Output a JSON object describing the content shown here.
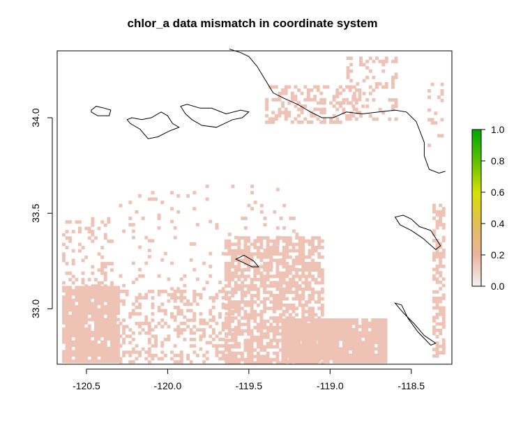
{
  "chart_data": {
    "type": "heatmap",
    "title": "chlor_a data mismatch in coordinate system",
    "xlabel": "",
    "ylabel": "",
    "xlim": [
      -120.68,
      -118.25
    ],
    "ylim": [
      32.71,
      34.35
    ],
    "x_ticks": [
      -120.5,
      -120.0,
      -119.5,
      -119.0,
      -118.5
    ],
    "x_tick_labels": [
      "-120.5",
      "-120.0",
      "-119.5",
      "-119.0",
      "-118.5"
    ],
    "y_ticks": [
      33.0,
      33.5,
      34.0
    ],
    "y_tick_labels": [
      "33.0",
      "33.5",
      "34.0"
    ],
    "legend": {
      "placement": "right",
      "range": [
        0.0,
        1.0
      ],
      "ticks": [
        0.0,
        0.2,
        0.4,
        0.6,
        0.8,
        1.0
      ],
      "tick_labels": [
        "0.0",
        "0.2",
        "0.4",
        "0.6",
        "0.8",
        "1.0"
      ],
      "colors": [
        "#f2f2f2",
        "#ebb49c",
        "#e3be57",
        "#d6e000",
        "#5ec000",
        "#00a600"
      ]
    },
    "cell_color": "#eec3b5",
    "cell_value_typical": 0.1,
    "coastline_color": "#000000",
    "regions": [
      {
        "name": "southwest-block",
        "lon": [
          -120.65,
          -120.3
        ],
        "lat": [
          32.72,
          33.12
        ],
        "density": 0.92
      },
      {
        "name": "southwest-edge",
        "lon": [
          -120.65,
          -120.35
        ],
        "lat": [
          33.12,
          33.48
        ],
        "density": 0.25
      },
      {
        "name": "south-central",
        "lon": [
          -120.3,
          -119.6
        ],
        "lat": [
          32.72,
          33.1
        ],
        "density": 0.35
      },
      {
        "name": "central-plume",
        "lon": [
          -119.65,
          -119.05
        ],
        "lat": [
          32.72,
          33.38
        ],
        "density": 0.7
      },
      {
        "name": "southeast-block",
        "lon": [
          -119.3,
          -118.65
        ],
        "lat": [
          32.72,
          32.95
        ],
        "density": 0.95
      },
      {
        "name": "scattered-middle",
        "lon": [
          -120.3,
          -119.2
        ],
        "lat": [
          33.1,
          33.65
        ],
        "density": 0.06
      },
      {
        "name": "north-coast",
        "lon": [
          -119.4,
          -118.8
        ],
        "lat": [
          33.98,
          34.17
        ],
        "density": 0.35
      },
      {
        "name": "north-east",
        "lon": [
          -118.9,
          -118.6
        ],
        "lat": [
          34.0,
          34.32
        ],
        "density": 0.25
      },
      {
        "name": "east-strip",
        "lon": [
          -118.37,
          -118.3
        ],
        "lat": [
          32.75,
          33.55
        ],
        "density": 0.55
      },
      {
        "name": "east-upper",
        "lon": [
          -118.4,
          -118.32
        ],
        "lat": [
          33.85,
          34.2
        ],
        "density": 0.15
      }
    ],
    "coastline": [
      [
        -119.62,
        34.36
      ],
      [
        -119.55,
        34.34
      ],
      [
        -119.5,
        34.32
      ],
      [
        -119.45,
        34.27
      ],
      [
        -119.4,
        34.2
      ],
      [
        -119.35,
        34.13
      ],
      [
        -119.28,
        34.1
      ],
      [
        -119.2,
        34.07
      ],
      [
        -119.12,
        34.03
      ],
      [
        -119.05,
        34.0
      ],
      [
        -118.98,
        34.0
      ],
      [
        -118.9,
        34.03
      ],
      [
        -118.8,
        34.02
      ],
      [
        -118.7,
        34.03
      ],
      [
        -118.6,
        34.04
      ],
      [
        -118.53,
        34.03
      ],
      [
        -118.47,
        33.98
      ],
      [
        -118.42,
        33.87
      ],
      [
        -118.42,
        33.8
      ],
      [
        -118.39,
        33.73
      ],
      [
        -118.33,
        33.71
      ],
      [
        -118.29,
        33.72
      ]
    ],
    "islands": [
      [
        [
          -120.47,
          34.04
        ],
        [
          -120.44,
          34.06
        ],
        [
          -120.39,
          34.05
        ],
        [
          -120.35,
          34.04
        ],
        [
          -120.36,
          34.01
        ],
        [
          -120.43,
          34.01
        ],
        [
          -120.47,
          34.03
        ],
        [
          -120.47,
          34.04
        ]
      ],
      [
        [
          -120.25,
          33.99
        ],
        [
          -120.22,
          34.0
        ],
        [
          -120.16,
          33.99
        ],
        [
          -120.1,
          34.0
        ],
        [
          -120.04,
          34.03
        ],
        [
          -120.0,
          34.01
        ],
        [
          -119.97,
          33.97
        ],
        [
          -119.93,
          33.95
        ],
        [
          -119.99,
          33.93
        ],
        [
          -120.06,
          33.9
        ],
        [
          -120.12,
          33.89
        ],
        [
          -120.17,
          33.94
        ],
        [
          -120.23,
          33.97
        ],
        [
          -120.25,
          33.99
        ]
      ],
      [
        [
          -119.92,
          34.06
        ],
        [
          -119.88,
          34.07
        ],
        [
          -119.8,
          34.05
        ],
        [
          -119.73,
          34.05
        ],
        [
          -119.64,
          34.02
        ],
        [
          -119.55,
          34.04
        ],
        [
          -119.5,
          34.03
        ],
        [
          -119.54,
          34.0
        ],
        [
          -119.6,
          33.99
        ],
        [
          -119.7,
          33.95
        ],
        [
          -119.79,
          33.96
        ],
        [
          -119.85,
          33.99
        ],
        [
          -119.89,
          34.02
        ],
        [
          -119.92,
          34.06
        ]
      ],
      [
        [
          -119.58,
          33.26
        ],
        [
          -119.53,
          33.28
        ],
        [
          -119.47,
          33.25
        ],
        [
          -119.44,
          33.22
        ],
        [
          -119.48,
          33.22
        ],
        [
          -119.53,
          33.24
        ],
        [
          -119.58,
          33.26
        ]
      ],
      [
        [
          -118.6,
          33.48
        ],
        [
          -118.55,
          33.49
        ],
        [
          -118.5,
          33.47
        ],
        [
          -118.45,
          33.43
        ],
        [
          -118.38,
          33.41
        ],
        [
          -118.32,
          33.33
        ],
        [
          -118.35,
          33.31
        ],
        [
          -118.43,
          33.37
        ],
        [
          -118.5,
          33.41
        ],
        [
          -118.57,
          33.44
        ],
        [
          -118.6,
          33.48
        ]
      ],
      [
        [
          -118.6,
          33.03
        ],
        [
          -118.56,
          33.02
        ],
        [
          -118.52,
          32.95
        ],
        [
          -118.46,
          32.88
        ],
        [
          -118.38,
          32.81
        ],
        [
          -118.35,
          32.82
        ],
        [
          -118.42,
          32.86
        ],
        [
          -118.48,
          32.92
        ],
        [
          -118.55,
          32.98
        ],
        [
          -118.6,
          33.03
        ]
      ]
    ]
  }
}
